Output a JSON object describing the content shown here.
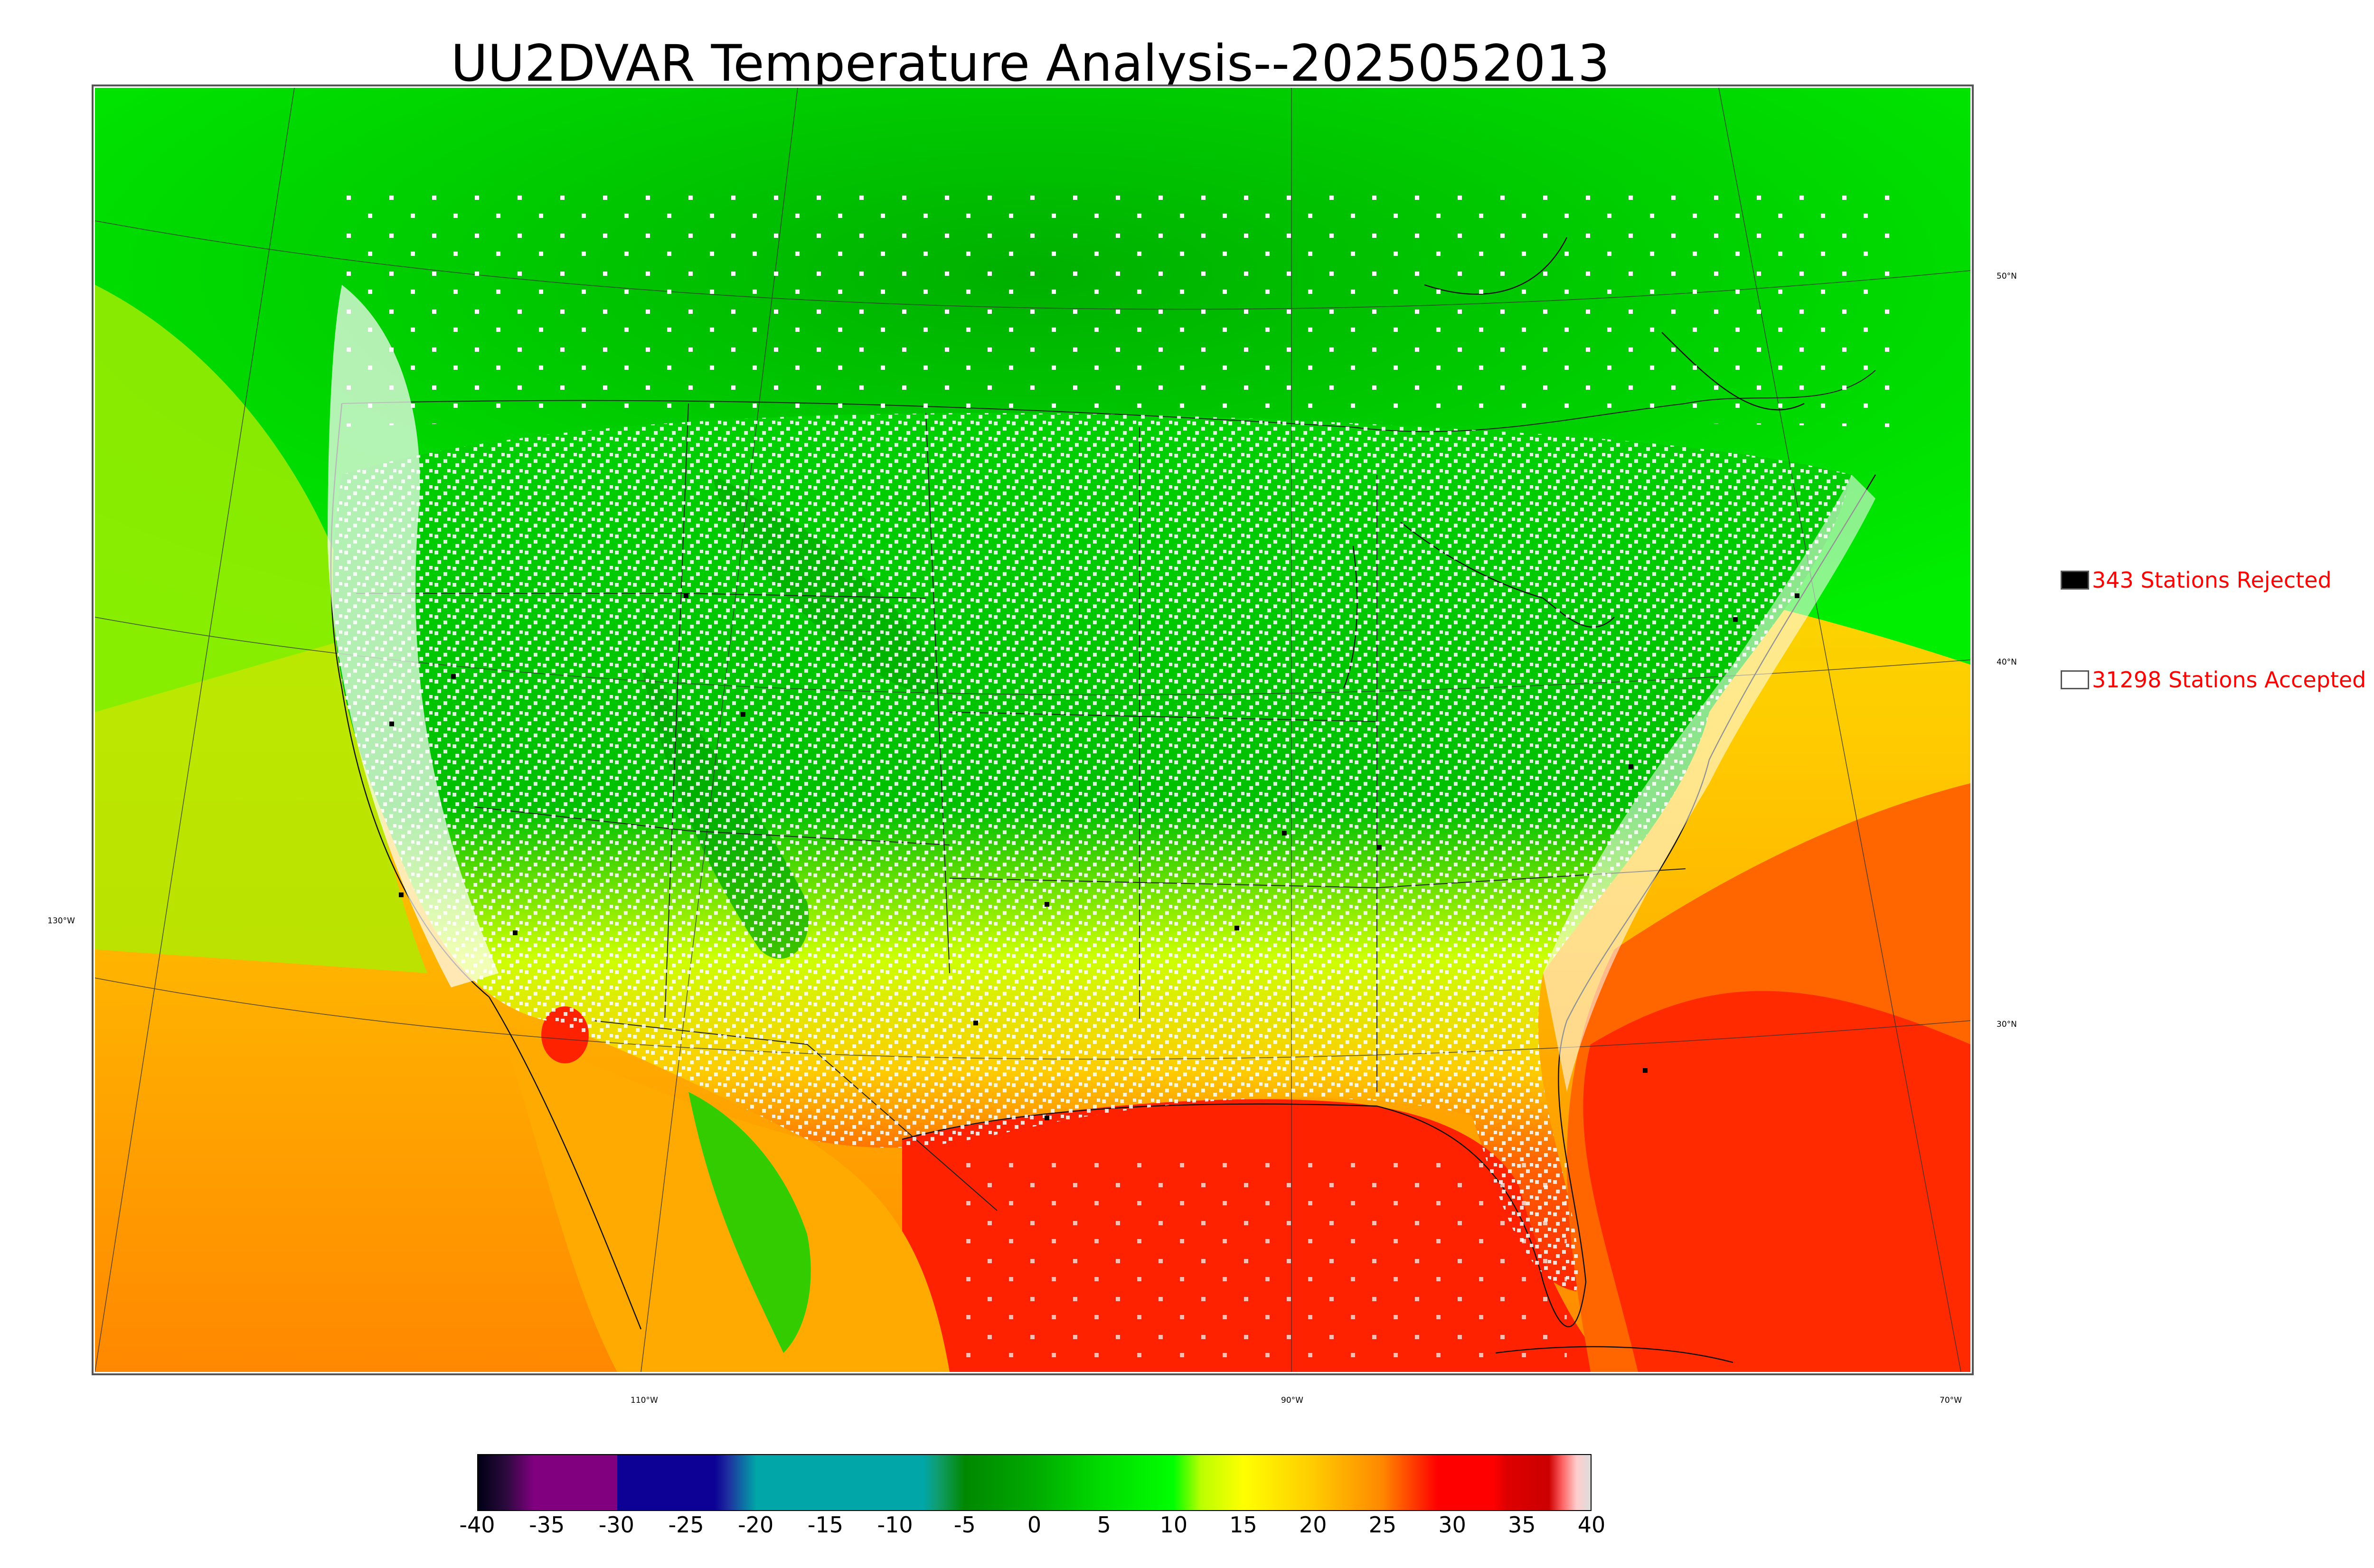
{
  "title": "UU2DVAR Temperature Analysis--2025052013",
  "legend": {
    "rejected": {
      "label": "343 Stations Rejected",
      "swatch_color": "#000000"
    },
    "accepted": {
      "label": "31298 Stations Accepted",
      "swatch_color": "#ffffff"
    }
  },
  "colorbar": {
    "min": -40,
    "max": 40,
    "ticks": [
      "-40",
      "-35",
      "-30",
      "-25",
      "-20",
      "-15",
      "-10",
      "-5",
      "0",
      "5",
      "10",
      "15",
      "20",
      "25",
      "30",
      "35",
      "40"
    ],
    "stops": [
      {
        "value": -40,
        "color": "#000015"
      },
      {
        "value": -38,
        "color": "#2b0a3d"
      },
      {
        "value": -36,
        "color": "#800080"
      },
      {
        "value": -30,
        "color": "#800080"
      },
      {
        "value": -30,
        "color": "#0c0095"
      },
      {
        "value": -23,
        "color": "#0c0095"
      },
      {
        "value": -22,
        "color": "#1e30a0"
      },
      {
        "value": -20,
        "color": "#00a6a8"
      },
      {
        "value": -8,
        "color": "#00a6a8"
      },
      {
        "value": -7,
        "color": "#119e72"
      },
      {
        "value": -5,
        "color": "#008800"
      },
      {
        "value": 0,
        "color": "#00aa00"
      },
      {
        "value": 5,
        "color": "#00dd00"
      },
      {
        "value": 10,
        "color": "#00ff00"
      },
      {
        "value": 12,
        "color": "#bbff00"
      },
      {
        "value": 15,
        "color": "#ffff00"
      },
      {
        "value": 20,
        "color": "#ffcc00"
      },
      {
        "value": 25,
        "color": "#ff8800"
      },
      {
        "value": 29,
        "color": "#ff0000"
      },
      {
        "value": 33,
        "color": "#ff0000"
      },
      {
        "value": 34,
        "color": "#dd0000"
      },
      {
        "value": 37,
        "color": "#cc0000"
      },
      {
        "value": 38,
        "color": "#ff6666"
      },
      {
        "value": 39,
        "color": "#ffcccc"
      },
      {
        "value": 40,
        "color": "#dddddd"
      }
    ]
  },
  "longitude_labels": [
    "130°W",
    "110°W",
    "90°W",
    "70°W"
  ],
  "latitude_labels": [
    "50°N",
    "40°N",
    "30°N"
  ],
  "colors": {
    "cold_green": "#00c000",
    "bright_green": "#00ff00",
    "yellow": "#ffff00",
    "orange": "#ff9900",
    "red": "#ff0000",
    "station_accepted": "#ffffff",
    "station_rejected": "#000000",
    "label_red": "#ff0000"
  }
}
